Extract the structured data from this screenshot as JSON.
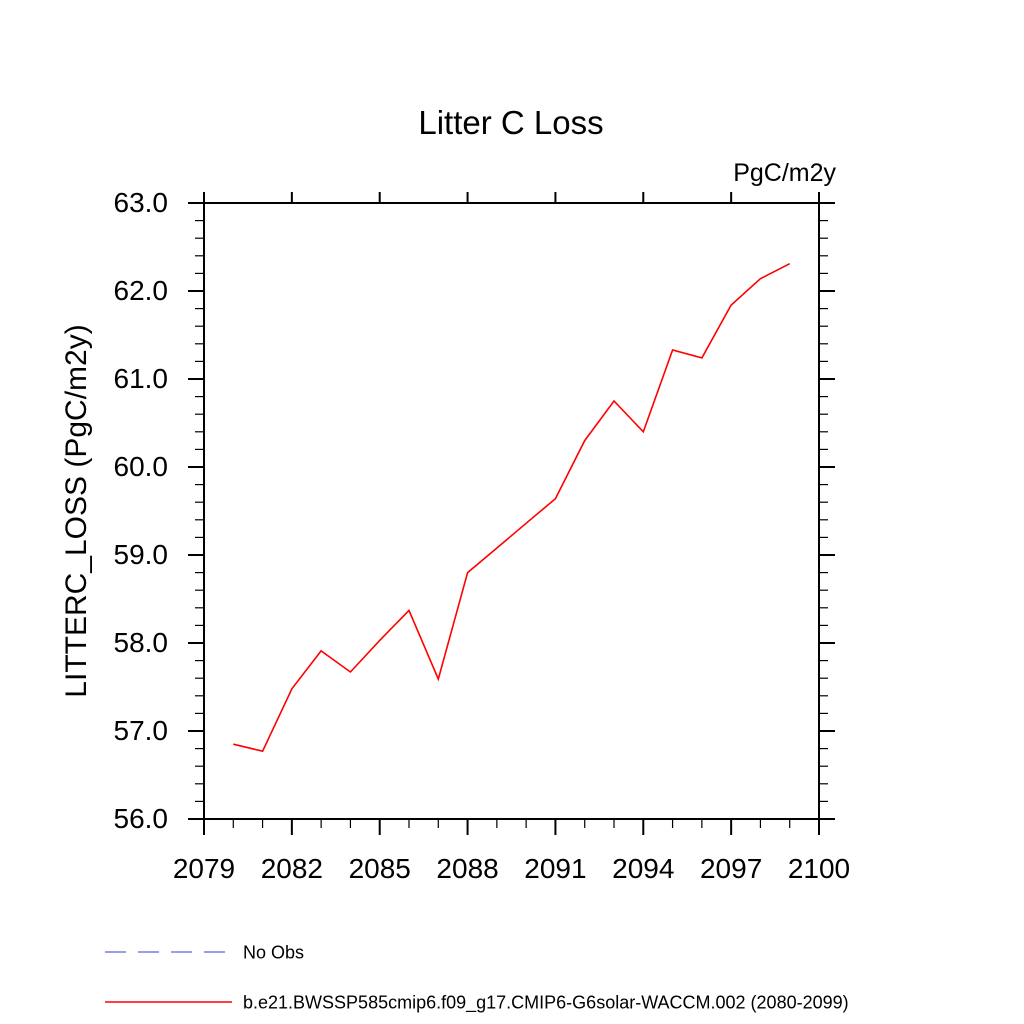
{
  "page": {
    "background": "#ffffff",
    "text_color": "#000000"
  },
  "chart_data": {
    "type": "line",
    "title": "Litter C Loss",
    "units_label": "PgC/m2y",
    "ylabel": "LITTERC_LOSS  (PgC/m2y)",
    "xlabel": "",
    "xlim": [
      2079,
      2100
    ],
    "ylim": [
      56.0,
      63.0
    ],
    "grid": false,
    "xticks_major": [
      2079,
      2082,
      2085,
      2088,
      2091,
      2094,
      2097,
      2100
    ],
    "xtick_labels": [
      "2079",
      "2082",
      "2085",
      "2088",
      "2091",
      "2094",
      "2097",
      "2100"
    ],
    "xtick_minor_step": 1,
    "yticks_major": [
      56.0,
      57.0,
      58.0,
      59.0,
      60.0,
      61.0,
      62.0,
      63.0
    ],
    "ytick_labels": [
      "56.0",
      "57.0",
      "58.0",
      "59.0",
      "60.0",
      "61.0",
      "62.0",
      "63.0"
    ],
    "ytick_minor_step": 0.2,
    "legend_position": "bottom-left",
    "series": [
      {
        "name": "No Obs",
        "color": "#7c7ce0",
        "style": "dashed",
        "x": [],
        "values": []
      },
      {
        "name": "b.e21.BWSSP585cmip6.f09_g17.CMIP6-G6solar-WACCM.002 (2080-2099)",
        "color": "#ff0000",
        "style": "solid",
        "x": [
          2080,
          2081,
          2082,
          2083,
          2084,
          2085,
          2086,
          2087,
          2088,
          2089,
          2090,
          2091,
          2092,
          2093,
          2094,
          2095,
          2096,
          2097,
          2098,
          2099
        ],
        "values": [
          56.85,
          56.77,
          57.48,
          57.91,
          57.67,
          58.03,
          58.37,
          57.59,
          58.8,
          59.08,
          59.36,
          59.64,
          60.3,
          60.75,
          60.4,
          61.33,
          61.24,
          61.84,
          62.14,
          62.31
        ]
      }
    ]
  }
}
